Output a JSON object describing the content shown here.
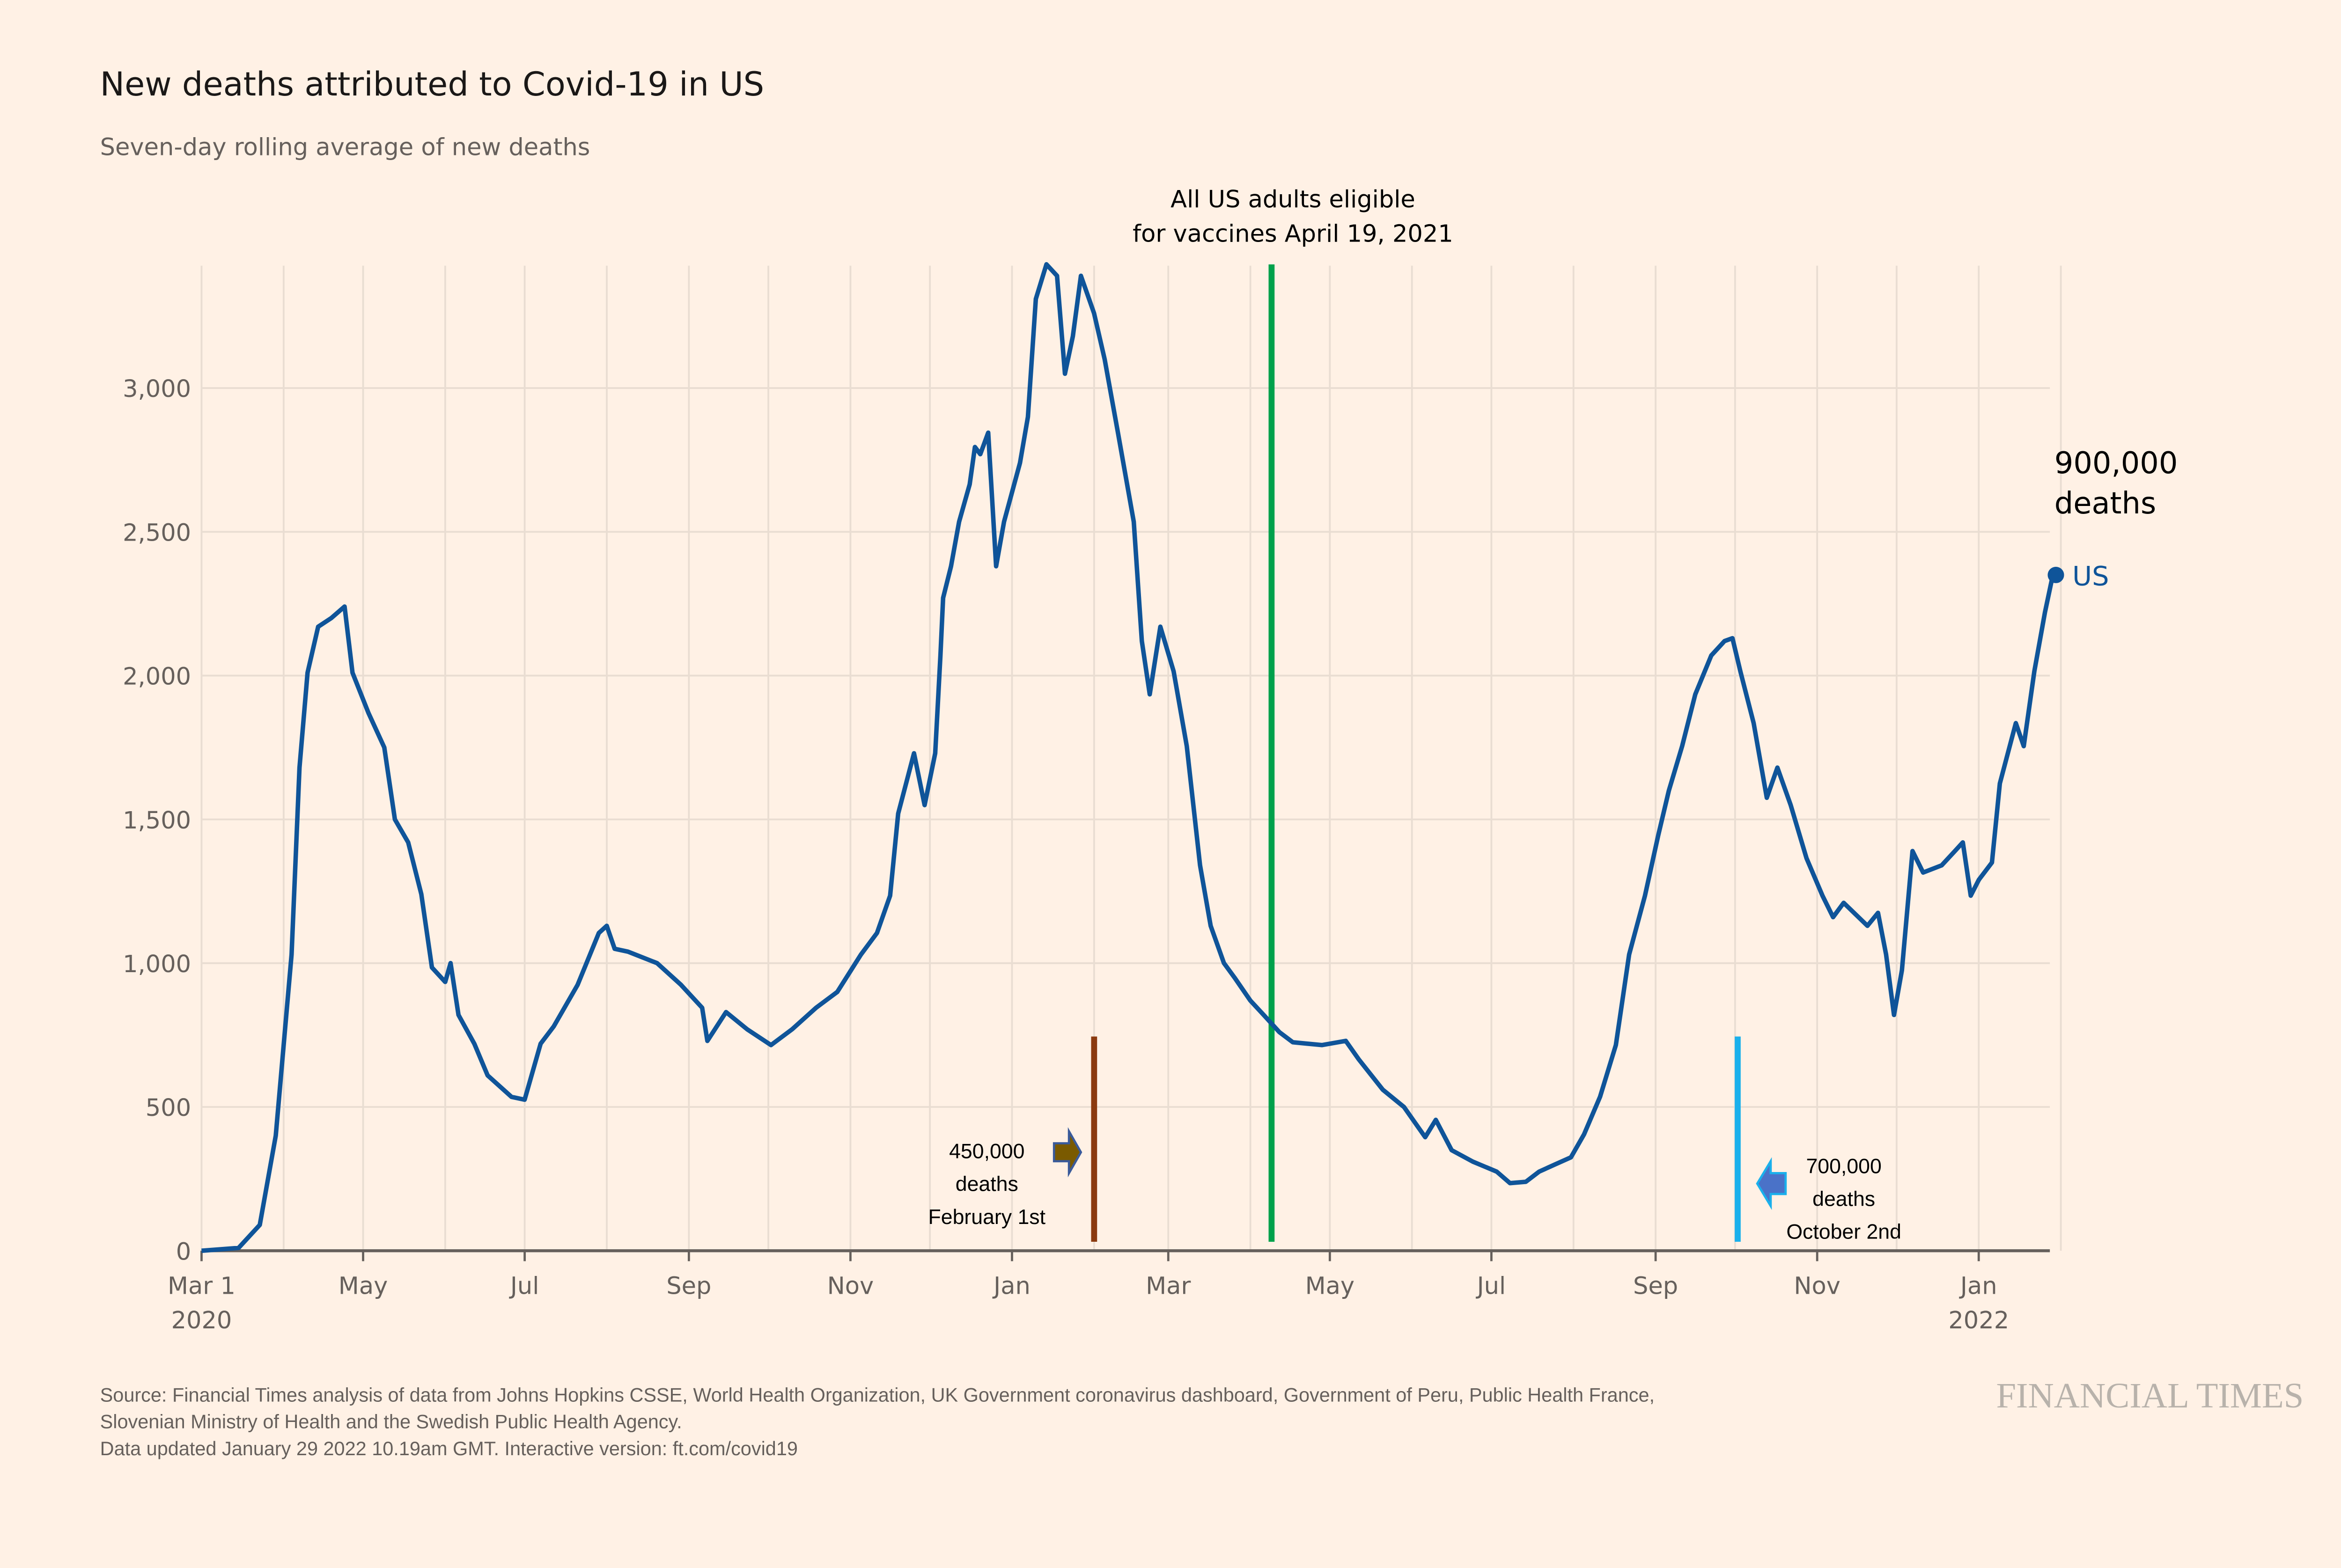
{
  "chart_data": {
    "type": "line",
    "title": "New deaths attributed to Covid-19 in US",
    "subtitle": "Seven-day rolling average of new deaths",
    "xlabel": "",
    "ylabel": "",
    "xlim": [
      "2020-03-01",
      "2022-01-29"
    ],
    "ylim": [
      0,
      3450
    ],
    "grid": true,
    "y_ticks": [
      0,
      500,
      1000,
      1500,
      2000,
      2500,
      3000
    ],
    "y_tick_labels": [
      "0",
      "500",
      "1,000",
      "1,500",
      "2,000",
      "2,500",
      "3,000"
    ],
    "x_ticks": [
      {
        "date": "2020-03-01",
        "label": "Mar 1",
        "sublabel": "2020"
      },
      {
        "date": "2020-05-01",
        "label": "May"
      },
      {
        "date": "2020-07-01",
        "label": "Jul"
      },
      {
        "date": "2020-09-01",
        "label": "Sep"
      },
      {
        "date": "2020-11-01",
        "label": "Nov"
      },
      {
        "date": "2021-01-01",
        "label": "Jan"
      },
      {
        "date": "2021-03-01",
        "label": "Mar"
      },
      {
        "date": "2021-05-01",
        "label": "May"
      },
      {
        "date": "2021-07-01",
        "label": "Jul"
      },
      {
        "date": "2021-09-01",
        "label": "Sep"
      },
      {
        "date": "2021-11-01",
        "label": "Nov"
      },
      {
        "date": "2022-01-01",
        "label": "Jan",
        "sublabel": "2022"
      }
    ],
    "series": [
      {
        "name": "US",
        "color": "#0f5499",
        "end_value": 2350,
        "points": [
          [
            "2020-03-01",
            0
          ],
          [
            "2020-03-15",
            10
          ],
          [
            "2020-03-23",
            90
          ],
          [
            "2020-03-29",
            400
          ],
          [
            "2020-04-04",
            1030
          ],
          [
            "2020-04-07",
            1680
          ],
          [
            "2020-04-10",
            2010
          ],
          [
            "2020-04-14",
            2170
          ],
          [
            "2020-04-19",
            2200
          ],
          [
            "2020-04-24",
            2240
          ],
          [
            "2020-04-27",
            2010
          ],
          [
            "2020-05-03",
            1870
          ],
          [
            "2020-05-09",
            1750
          ],
          [
            "2020-05-13",
            1500
          ],
          [
            "2020-05-18",
            1420
          ],
          [
            "2020-05-23",
            1240
          ],
          [
            "2020-05-27",
            985
          ],
          [
            "2020-06-01",
            935
          ],
          [
            "2020-06-03",
            1000
          ],
          [
            "2020-06-06",
            820
          ],
          [
            "2020-06-12",
            720
          ],
          [
            "2020-06-17",
            610
          ],
          [
            "2020-06-26",
            535
          ],
          [
            "2020-07-01",
            525
          ],
          [
            "2020-07-07",
            720
          ],
          [
            "2020-07-12",
            780
          ],
          [
            "2020-07-21",
            925
          ],
          [
            "2020-07-29",
            1105
          ],
          [
            "2020-08-01",
            1130
          ],
          [
            "2020-08-04",
            1050
          ],
          [
            "2020-08-09",
            1040
          ],
          [
            "2020-08-20",
            1000
          ],
          [
            "2020-08-29",
            925
          ],
          [
            "2020-09-06",
            845
          ],
          [
            "2020-09-08",
            730
          ],
          [
            "2020-09-15",
            830
          ],
          [
            "2020-09-23",
            770
          ],
          [
            "2020-10-02",
            715
          ],
          [
            "2020-10-10",
            770
          ],
          [
            "2020-10-19",
            845
          ],
          [
            "2020-10-27",
            900
          ],
          [
            "2020-11-05",
            1030
          ],
          [
            "2020-11-11",
            1105
          ],
          [
            "2020-11-16",
            1235
          ],
          [
            "2020-11-19",
            1520
          ],
          [
            "2020-11-25",
            1730
          ],
          [
            "2020-11-29",
            1550
          ],
          [
            "2020-12-03",
            1730
          ],
          [
            "2020-12-05",
            2070
          ],
          [
            "2020-12-06",
            2270
          ],
          [
            "2020-12-09",
            2380
          ],
          [
            "2020-12-12",
            2535
          ],
          [
            "2020-12-16",
            2665
          ],
          [
            "2020-12-18",
            2795
          ],
          [
            "2020-12-20",
            2770
          ],
          [
            "2020-12-23",
            2845
          ],
          [
            "2020-12-26",
            2380
          ],
          [
            "2020-12-29",
            2535
          ],
          [
            "2021-01-04",
            2740
          ],
          [
            "2021-01-07",
            2900
          ],
          [
            "2021-01-10",
            3310
          ],
          [
            "2021-01-14",
            3430
          ],
          [
            "2021-01-18",
            3390
          ],
          [
            "2021-01-21",
            3050
          ],
          [
            "2021-01-24",
            3180
          ],
          [
            "2021-01-27",
            3390
          ],
          [
            "2021-02-01",
            3260
          ],
          [
            "2021-02-05",
            3100
          ],
          [
            "2021-02-10",
            2845
          ],
          [
            "2021-02-16",
            2535
          ],
          [
            "2021-02-19",
            2120
          ],
          [
            "2021-02-22",
            1935
          ],
          [
            "2021-02-26",
            2170
          ],
          [
            "2021-03-03",
            2015
          ],
          [
            "2021-03-08",
            1755
          ],
          [
            "2021-03-13",
            1340
          ],
          [
            "2021-03-17",
            1130
          ],
          [
            "2021-03-22",
            1000
          ],
          [
            "2021-03-26",
            950
          ],
          [
            "2021-04-01",
            870
          ],
          [
            "2021-04-06",
            820
          ],
          [
            "2021-04-12",
            760
          ],
          [
            "2021-04-17",
            725
          ],
          [
            "2021-04-28",
            715
          ],
          [
            "2021-05-07",
            730
          ],
          [
            "2021-05-12",
            665
          ],
          [
            "2021-05-21",
            560
          ],
          [
            "2021-05-29",
            500
          ],
          [
            "2021-06-06",
            395
          ],
          [
            "2021-06-10",
            455
          ],
          [
            "2021-06-16",
            350
          ],
          [
            "2021-06-24",
            310
          ],
          [
            "2021-07-03",
            275
          ],
          [
            "2021-07-08",
            235
          ],
          [
            "2021-07-14",
            240
          ],
          [
            "2021-07-19",
            275
          ],
          [
            "2021-07-25",
            300
          ],
          [
            "2021-07-31",
            325
          ],
          [
            "2021-08-05",
            405
          ],
          [
            "2021-08-11",
            535
          ],
          [
            "2021-08-17",
            715
          ],
          [
            "2021-08-22",
            1030
          ],
          [
            "2021-08-28",
            1235
          ],
          [
            "2021-09-02",
            1445
          ],
          [
            "2021-09-06",
            1600
          ],
          [
            "2021-09-11",
            1755
          ],
          [
            "2021-09-16",
            1935
          ],
          [
            "2021-09-22",
            2070
          ],
          [
            "2021-09-27",
            2120
          ],
          [
            "2021-09-30",
            2130
          ],
          [
            "2021-10-03",
            2015
          ],
          [
            "2021-10-08",
            1835
          ],
          [
            "2021-10-13",
            1575
          ],
          [
            "2021-10-17",
            1680
          ],
          [
            "2021-10-22",
            1550
          ],
          [
            "2021-10-28",
            1365
          ],
          [
            "2021-11-03",
            1235
          ],
          [
            "2021-11-07",
            1160
          ],
          [
            "2021-11-11",
            1210
          ],
          [
            "2021-11-20",
            1130
          ],
          [
            "2021-11-24",
            1175
          ],
          [
            "2021-11-27",
            1030
          ],
          [
            "2021-11-30",
            820
          ],
          [
            "2021-12-03",
            975
          ],
          [
            "2021-12-07",
            1390
          ],
          [
            "2021-12-11",
            1315
          ],
          [
            "2021-12-18",
            1340
          ],
          [
            "2021-12-23",
            1390
          ],
          [
            "2021-12-26",
            1420
          ],
          [
            "2021-12-29",
            1235
          ],
          [
            "2022-01-01",
            1290
          ],
          [
            "2022-01-06",
            1350
          ],
          [
            "2022-01-09",
            1625
          ],
          [
            "2022-01-15",
            1835
          ],
          [
            "2022-01-18",
            1755
          ],
          [
            "2022-01-22",
            2015
          ],
          [
            "2022-01-26",
            2220
          ],
          [
            "2022-01-29",
            2350
          ]
        ]
      }
    ],
    "annotations": [
      {
        "id": "vaccine",
        "date": "2021-04-09",
        "top_value": 3430,
        "color": "#00a14b",
        "lines": [
          "All US adults eligible",
          "for vaccines April 19, 2021"
        ]
      },
      {
        "id": "deaths-450k",
        "date": "2021-02-01",
        "top_value": 745,
        "color": "#8b3a0f",
        "lines": [
          "450,000",
          "deaths",
          "February 1st"
        ]
      },
      {
        "id": "deaths-700k",
        "date": "2021-10-02",
        "top_value": 745,
        "color": "#1ab0ec",
        "lines": [
          "700,000",
          "deaths",
          "October 2nd"
        ]
      },
      {
        "id": "deaths-900k",
        "lines": [
          "900,000",
          "deaths"
        ]
      }
    ],
    "legend": "end-of-line label"
  },
  "footer": {
    "source_line1": "Source: Financial Times analysis of data from Johns Hopkins CSSE, World Health Organization, UK Government coronavirus dashboard, Government of Peru, Public Health France,",
    "source_line2": "Slovenian Ministry of Health and the Swedish Public Health Agency.",
    "updated": "Data updated January 29 2022 10.19am GMT. Interactive version: ft.com/covid19",
    "logo": "FINANCIAL TIMES"
  },
  "colors": {
    "background": "#fff1e5",
    "grid": "#e9ddd2",
    "axis": "#66605c",
    "line": "#0f5499"
  }
}
